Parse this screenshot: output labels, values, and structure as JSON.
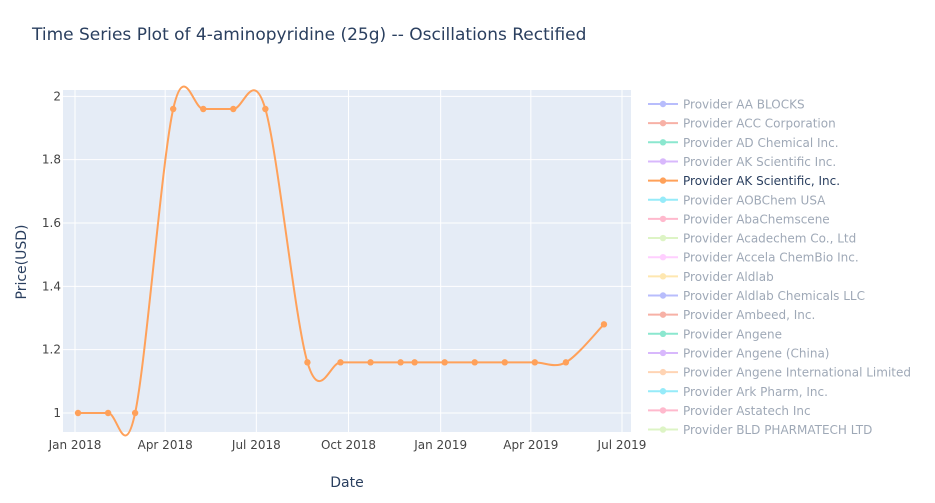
{
  "chart_data": {
    "type": "line",
    "title": "Time Series Plot of 4-aminopyridine (25g) -- Oscillations Rectified",
    "xlabel": "Date",
    "ylabel": "Price(USD)",
    "x_range": [
      "2017-12-20",
      "2019-07-10"
    ],
    "ylim": [
      0.94,
      2.02
    ],
    "x_ticks": [
      {
        "date": "2018-01-01",
        "label": "Jan 2018"
      },
      {
        "date": "2018-04-01",
        "label": "Apr 2018"
      },
      {
        "date": "2018-07-01",
        "label": "Jul 2018"
      },
      {
        "date": "2018-10-01",
        "label": "Oct 2018"
      },
      {
        "date": "2019-01-01",
        "label": "Jan 2019"
      },
      {
        "date": "2019-04-01",
        "label": "Apr 2019"
      },
      {
        "date": "2019-07-01",
        "label": "Jul 2019"
      }
    ],
    "y_ticks": [
      {
        "value": 1.0,
        "label": "1"
      },
      {
        "value": 1.2,
        "label": "1.2"
      },
      {
        "value": 1.4,
        "label": "1.4"
      },
      {
        "value": 1.6,
        "label": "1.6"
      },
      {
        "value": 1.8,
        "label": "1.8"
      },
      {
        "value": 2.0,
        "label": "2"
      }
    ],
    "grid": true,
    "legend_position": "right",
    "active_series": "Provider AK Scientific, Inc.",
    "series": [
      {
        "name": "Provider AA BLOCKS",
        "color": "#636efa",
        "points": []
      },
      {
        "name": "Provider ACC Corporation",
        "color": "#ef553b",
        "points": []
      },
      {
        "name": "Provider AD Chemical Inc.",
        "color": "#00cc96",
        "points": []
      },
      {
        "name": "Provider AK Scientific Inc.",
        "color": "#ab63fa",
        "points": []
      },
      {
        "name": "Provider AK Scientific, Inc.",
        "color": "#ffa15a",
        "points": [
          {
            "x": "2018-01-04",
            "y": 1.0
          },
          {
            "x": "2018-02-03",
            "y": 1.0
          },
          {
            "x": "2018-03-02",
            "y": 1.0
          },
          {
            "x": "2018-04-09",
            "y": 1.96
          },
          {
            "x": "2018-05-09",
            "y": 1.96
          },
          {
            "x": "2018-06-08",
            "y": 1.96
          },
          {
            "x": "2018-07-10",
            "y": 1.96
          },
          {
            "x": "2018-08-21",
            "y": 1.16
          },
          {
            "x": "2018-09-23",
            "y": 1.16
          },
          {
            "x": "2018-10-23",
            "y": 1.16
          },
          {
            "x": "2018-11-22",
            "y": 1.16
          },
          {
            "x": "2018-12-06",
            "y": 1.16
          },
          {
            "x": "2019-01-05",
            "y": 1.16
          },
          {
            "x": "2019-02-04",
            "y": 1.16
          },
          {
            "x": "2019-03-06",
            "y": 1.16
          },
          {
            "x": "2019-04-05",
            "y": 1.16
          },
          {
            "x": "2019-05-06",
            "y": 1.16
          },
          {
            "x": "2019-06-13",
            "y": 1.28
          }
        ]
      },
      {
        "name": "Provider AOBChem USA",
        "color": "#19d3f3",
        "points": []
      },
      {
        "name": "Provider AbaChemscene",
        "color": "#ff6692",
        "points": []
      },
      {
        "name": "Provider Acadechem Co., Ltd",
        "color": "#b6e880",
        "points": []
      },
      {
        "name": "Provider Accela ChemBio Inc.",
        "color": "#ff97ff",
        "points": []
      },
      {
        "name": "Provider Aldlab",
        "color": "#fecb52",
        "points": []
      },
      {
        "name": "Provider Aldlab Chemicals LLC",
        "color": "#636efa",
        "points": []
      },
      {
        "name": "Provider Ambeed, Inc.",
        "color": "#ef553b",
        "points": []
      },
      {
        "name": "Provider Angene",
        "color": "#00cc96",
        "points": []
      },
      {
        "name": "Provider Angene (China)",
        "color": "#ab63fa",
        "points": []
      },
      {
        "name": "Provider Angene International Limited",
        "color": "#ffa15a",
        "points": []
      },
      {
        "name": "Provider Ark Pharm, Inc.",
        "color": "#19d3f3",
        "points": []
      },
      {
        "name": "Provider Astatech Inc",
        "color": "#ff6692",
        "points": []
      },
      {
        "name": "Provider BLD PHARMATECH LTD",
        "color": "#b6e880",
        "points": []
      }
    ]
  },
  "colors": {
    "plot_bg": "#e5ecf6",
    "grid": "#ffffff",
    "text": "#2a3f5f",
    "tick_text": "#444444",
    "legend_inactive_text": "#a8b1bd"
  }
}
